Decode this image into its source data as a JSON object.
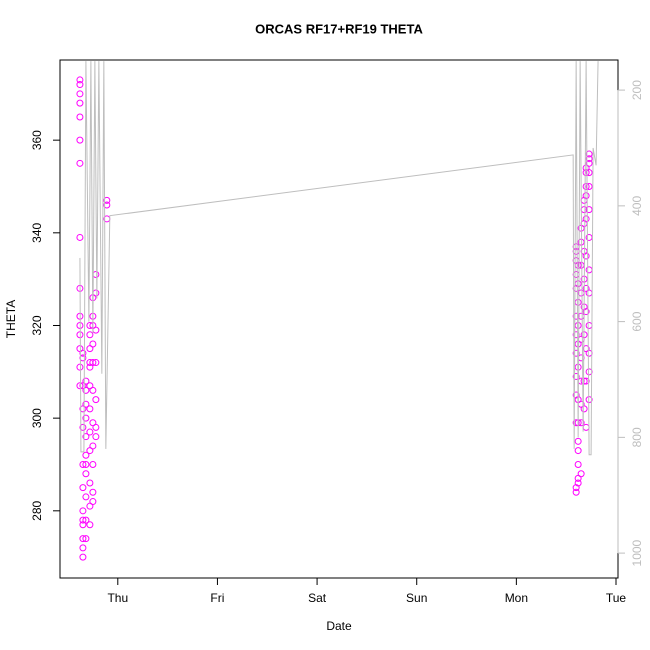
{
  "chart_data": {
    "type": "scatter",
    "title": "ORCAS RF17+RF19 THETA",
    "xlabel": "Date",
    "ylabel": "THETA",
    "xlim": [
      -0.58,
      5.02
    ],
    "ylim": [
      265.5,
      377.3
    ],
    "y2lim": [
      1043,
      148
    ],
    "xticks": [
      {
        "value": 0,
        "label": "Thu"
      },
      {
        "value": 1,
        "label": "Fri"
      },
      {
        "value": 2,
        "label": "Sat"
      },
      {
        "value": 3,
        "label": "Sun"
      },
      {
        "value": 4,
        "label": "Mon"
      },
      {
        "value": 5,
        "label": "Tue"
      }
    ],
    "yticks": [
      280,
      300,
      320,
      340,
      360
    ],
    "y2ticks": [
      200,
      400,
      600,
      800,
      1000
    ],
    "series": [
      {
        "color": "#ff00ff",
        "x": [
          -0.38,
          -0.38,
          -0.38,
          -0.38,
          -0.38,
          -0.38,
          -0.38,
          -0.38,
          -0.38,
          -0.38,
          -0.38,
          -0.38,
          -0.38,
          -0.38,
          -0.38,
          -0.35,
          -0.35,
          -0.35,
          -0.35,
          -0.35,
          -0.35,
          -0.35,
          -0.35,
          -0.35,
          -0.35,
          -0.35,
          -0.35,
          -0.35,
          -0.32,
          -0.32,
          -0.32,
          -0.32,
          -0.32,
          -0.32,
          -0.32,
          -0.32,
          -0.32,
          -0.32,
          -0.32,
          -0.28,
          -0.28,
          -0.28,
          -0.28,
          -0.28,
          -0.28,
          -0.28,
          -0.28,
          -0.28,
          -0.28,
          -0.28,
          -0.28,
          -0.25,
          -0.25,
          -0.25,
          -0.25,
          -0.25,
          -0.25,
          -0.25,
          -0.25,
          -0.25,
          -0.25,
          -0.25,
          -0.22,
          -0.22,
          -0.22,
          -0.22,
          -0.22,
          -0.22,
          -0.22,
          -0.11,
          -0.11,
          -0.11,
          4.6,
          4.6,
          4.6,
          4.6,
          4.6,
          4.6,
          4.6,
          4.6,
          4.6,
          4.6,
          4.6,
          4.6,
          4.6,
          4.62,
          4.62,
          4.62,
          4.62,
          4.62,
          4.62,
          4.62,
          4.62,
          4.62,
          4.62,
          4.62,
          4.62,
          4.62,
          4.65,
          4.65,
          4.65,
          4.65,
          4.65,
          4.65,
          4.65,
          4.65,
          4.65,
          4.65,
          4.65,
          4.68,
          4.68,
          4.68,
          4.68,
          4.68,
          4.68,
          4.68,
          4.68,
          4.68,
          4.7,
          4.7,
          4.7,
          4.7,
          4.7,
          4.7,
          4.7,
          4.7,
          4.7,
          4.7,
          4.7,
          4.73,
          4.73,
          4.73,
          4.73,
          4.73,
          4.73,
          4.73,
          4.73,
          4.73,
          4.73,
          4.73,
          4.73,
          4.73
        ],
        "values": [
          370,
          372,
          373,
          368,
          365,
          360,
          355,
          339,
          328,
          322,
          320,
          318,
          315,
          311,
          307,
          314,
          313,
          307,
          302,
          298,
          290,
          285,
          280,
          277,
          272,
          270,
          274,
          278,
          306,
          303,
          300,
          296,
          292,
          288,
          283,
          278,
          274,
          308,
          290,
          318,
          315,
          311,
          307,
          302,
          297,
          293,
          286,
          281,
          277,
          320,
          312,
          322,
          320,
          316,
          312,
          306,
          299,
          294,
          290,
          284,
          282,
          326,
          331,
          327,
          319,
          312,
          304,
          298,
          296,
          347,
          346,
          343,
          337,
          336,
          334,
          331,
          328,
          322,
          318,
          314,
          309,
          305,
          299,
          285,
          284,
          333,
          329,
          325,
          320,
          316,
          311,
          304,
          299,
          295,
          293,
          290,
          287,
          286,
          341,
          338,
          333,
          327,
          322,
          317,
          313,
          308,
          303,
          299,
          288,
          347,
          345,
          342,
          336,
          330,
          324,
          318,
          308,
          302,
          354,
          353,
          350,
          348,
          343,
          335,
          328,
          323,
          315,
          308,
          298,
          357,
          356,
          355,
          353,
          350,
          345,
          339,
          332,
          327,
          320,
          314,
          310,
          304
        ]
      },
      {
        "type": "line",
        "axis": "y2",
        "color": "#bebebe",
        "x": [
          -0.38,
          -0.37,
          -0.34,
          -0.32,
          -0.29,
          -0.27,
          -0.25,
          -0.23,
          -0.21,
          -0.19,
          -0.16,
          -0.14,
          -0.12,
          -0.08,
          4.57,
          4.58,
          4.6,
          4.62,
          4.64,
          4.67,
          4.7,
          4.73,
          4.75,
          4.77,
          4.8,
          4.82
        ],
        "values": [
          490,
          825,
          825,
          150,
          600,
          150,
          620,
          150,
          560,
          150,
          690,
          150,
          820,
          417,
          312,
          820,
          150,
          800,
          150,
          790,
          150,
          830,
          830,
          300,
          330,
          150
        ]
      }
    ]
  }
}
